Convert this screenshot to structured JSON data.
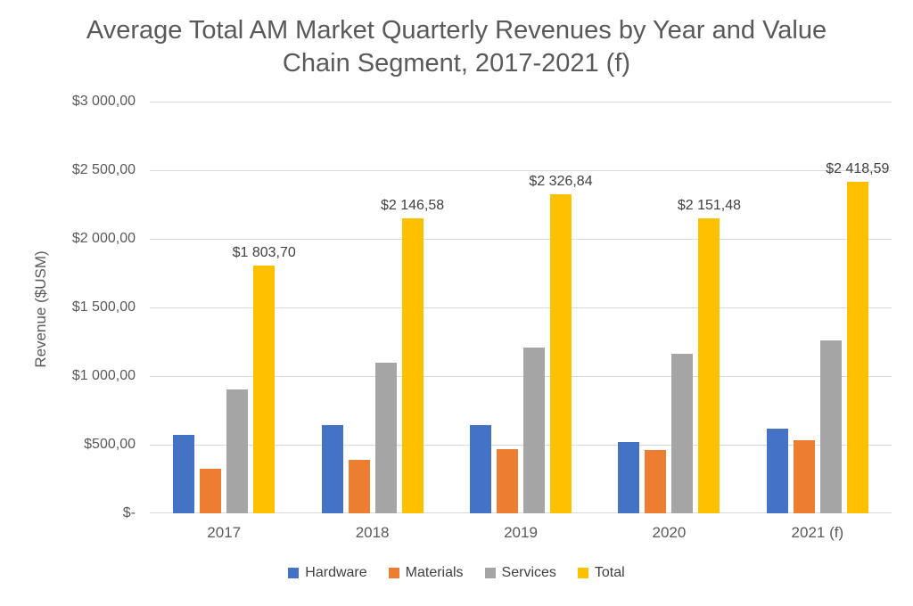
{
  "title": "Average Total AM Market Quarterly Revenues by Year and Value Chain Segment, 2017-2021 (f)",
  "title_line1": "Average Total AM Market Quarterly Revenues by Year and Value",
  "title_line2": "Chain Segment, 2017-2021 (f)",
  "y_axis": {
    "label": "Revenue ($USM)",
    "ticks": [
      "$3 000,00",
      "$2 500,00",
      "$2 000,00",
      "$1 500,00",
      "$1 000,00",
      "$500,00",
      "$-"
    ],
    "min": 0,
    "max": 3000,
    "step": 500
  },
  "chart_data": {
    "type": "bar",
    "title": "Average Total AM Market Quarterly Revenues by Year and Value Chain Segment, 2017-2021 (f)",
    "xlabel": "",
    "ylabel": "Revenue ($USM)",
    "ylim": [
      0,
      3000
    ],
    "grid": true,
    "grid_color": "#d9d9d9",
    "legend_position": "bottom",
    "categories": [
      "2017",
      "2018",
      "2019",
      "2020",
      "2021 (f)"
    ],
    "series": [
      {
        "name": "Hardware",
        "color": "#4472C4",
        "values": [
          570,
          640,
          645,
          520,
          615
        ]
      },
      {
        "name": "Materials",
        "color": "#ED7D31",
        "values": [
          325,
          390,
          470,
          460,
          530
        ]
      },
      {
        "name": "Services",
        "color": "#A5A5A5",
        "values": [
          905,
          1095,
          1205,
          1160,
          1260
        ]
      },
      {
        "name": "Total",
        "color": "#FFC000",
        "values": [
          1803.7,
          2146.58,
          2326.84,
          2151.48,
          2418.59
        ],
        "labels": [
          "$1 803,70",
          "$2 146,58",
          "$2 326,84",
          "$2 151,48",
          "$2 418,59"
        ]
      }
    ],
    "note": "Total values read from data labels; Hardware/Materials/Services estimated from bar heights vs gridlines"
  }
}
